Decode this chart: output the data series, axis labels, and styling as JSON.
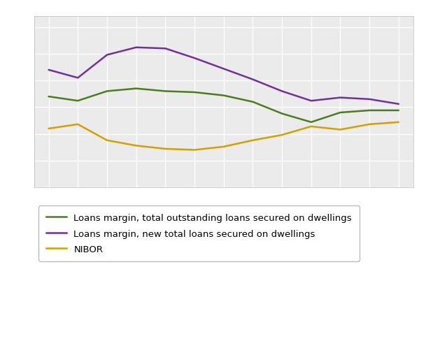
{
  "background_color": "#ffffff",
  "plot_bg_color": "#ebebeb",
  "grid_color": "#ffffff",
  "outer_border_color": "#555555",
  "x_count": 13,
  "green_line": {
    "label": "Loans margin, total outstanding loans secured on dwellings",
    "color": "#4d7c1e",
    "values": [
      1.7,
      1.62,
      1.8,
      1.85,
      1.8,
      1.78,
      1.72,
      1.6,
      1.38,
      1.22,
      1.4,
      1.44,
      1.44
    ]
  },
  "purple_line": {
    "label": "Loans margin, new total loans secured on dwellings",
    "color": "#7030a0",
    "values": [
      2.2,
      2.05,
      2.48,
      2.62,
      2.6,
      2.42,
      2.22,
      2.02,
      1.8,
      1.62,
      1.68,
      1.65,
      1.56
    ]
  },
  "yellow_line": {
    "label": "NIBOR",
    "color": "#d4a000",
    "values": [
      1.1,
      1.18,
      0.88,
      0.78,
      0.72,
      0.7,
      0.76,
      0.88,
      0.98,
      1.14,
      1.08,
      1.18,
      1.22
    ]
  },
  "ylim": [
    0.0,
    3.2
  ],
  "xlim": [
    -0.5,
    12.5
  ],
  "ytick_count": 7,
  "xtick_count": 13,
  "line_width": 1.8,
  "legend_fontsize": 9.5,
  "legend_borderpad": 0.8,
  "legend_labelspacing": 0.7
}
